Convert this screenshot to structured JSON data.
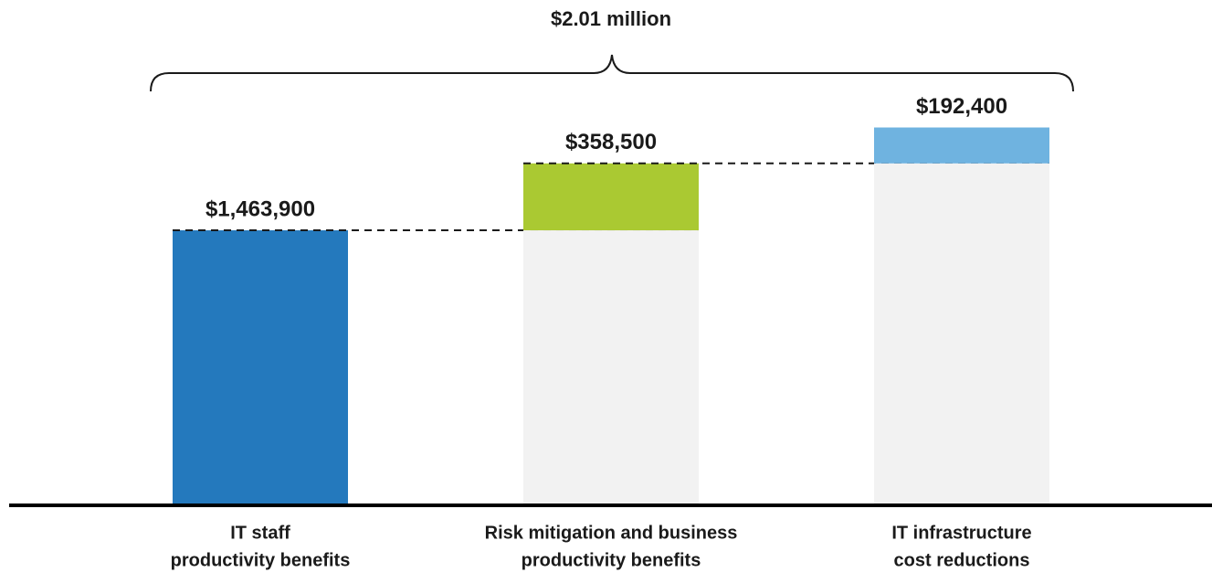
{
  "chart_data": {
    "type": "waterfall",
    "annotation": "$2.01 million",
    "categories": [
      [
        "IT staff",
        "productivity benefits"
      ],
      [
        "Risk mitigation and business",
        "productivity benefits"
      ],
      [
        "IT infrastructure",
        "cost reductions"
      ]
    ],
    "values": [
      1463900,
      358500,
      192400
    ],
    "value_labels": [
      "$1,463,900",
      "$358,500",
      "$192,400"
    ],
    "colors": [
      "#2479bd",
      "#aac932",
      "#6fb3e0"
    ],
    "ylim": [
      0,
      2600000
    ]
  }
}
